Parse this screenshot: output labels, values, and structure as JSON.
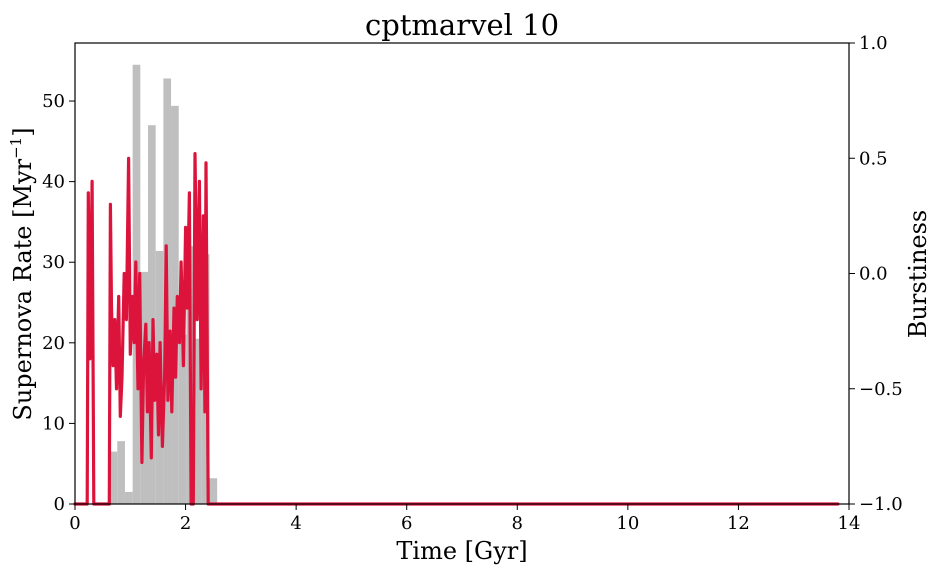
{
  "chart_data": {
    "type": "bar",
    "title": "cptmarvel 10",
    "xlabel": "Time [Gyr]",
    "ylabel": "Supernova Rate [Myr",
    "ylabel_sup": "−1",
    "ylabel_close": "]",
    "y2label": "Burstiness",
    "xlim": [
      0,
      14
    ],
    "ylim": [
      0,
      57.2
    ],
    "y2lim": [
      -1,
      1
    ],
    "xticks": [
      0,
      2,
      4,
      6,
      8,
      10,
      12,
      14
    ],
    "yticks": [
      0,
      10,
      20,
      30,
      40,
      50
    ],
    "y2ticks": [
      -1.0,
      -0.5,
      0.0,
      0.5,
      1.0
    ],
    "y2tick_labels": [
      "−1.0",
      "−0.5",
      "0.0",
      "0.5",
      "1.0"
    ],
    "grid": false,
    "colors": {
      "bars": "#bfbfbf",
      "line": "#dc143c"
    },
    "series": [
      {
        "type": "bar",
        "axis": "left",
        "bin_width": 0.139,
        "x": [
          0.695,
          0.834,
          0.973,
          1.112,
          1.251,
          1.39,
          1.529,
          1.668,
          1.807,
          1.946,
          2.085,
          2.224,
          2.363,
          2.502,
          2.641
        ],
        "values": [
          6.5,
          7.8,
          1.5,
          54.5,
          28.8,
          47.0,
          31.4,
          52.8,
          49.4,
          21.0,
          32.0,
          20.5,
          31.0,
          3.2,
          0.0
        ]
      },
      {
        "type": "line",
        "axis": "right",
        "x": [
          0.0,
          0.22,
          0.24,
          0.27,
          0.31,
          0.34,
          0.37,
          0.4,
          0.62,
          0.64,
          0.66,
          0.69,
          0.72,
          0.75,
          0.79,
          0.82,
          0.85,
          0.89,
          0.93,
          0.97,
          1.0,
          1.04,
          1.07,
          1.1,
          1.14,
          1.17,
          1.21,
          1.24,
          1.28,
          1.31,
          1.34,
          1.38,
          1.41,
          1.44,
          1.48,
          1.51,
          1.54,
          1.58,
          1.62,
          1.65,
          1.68,
          1.72,
          1.75,
          1.79,
          1.82,
          1.85,
          1.89,
          1.92,
          1.96,
          2.0,
          2.03,
          2.07,
          2.1,
          2.14,
          2.17,
          2.21,
          2.25,
          2.28,
          2.32,
          2.35,
          2.37,
          2.41,
          2.44,
          2.48,
          2.51,
          2.54,
          2.58,
          2.62,
          2.65,
          2.68,
          13.8
        ],
        "values": [
          -1.0,
          -1.0,
          0.35,
          -0.37,
          0.4,
          -1.0,
          -1.0,
          -1.0,
          -1.0,
          0.3,
          -0.15,
          -0.4,
          -0.2,
          -0.5,
          -0.1,
          -0.62,
          -0.45,
          0.0,
          -0.2,
          0.5,
          -0.35,
          -0.1,
          -0.3,
          0.05,
          -0.5,
          0.0,
          -0.82,
          -0.4,
          -0.22,
          -0.6,
          -0.3,
          -0.8,
          -0.2,
          -0.55,
          -0.35,
          -0.7,
          -0.3,
          -0.75,
          -0.45,
          0.12,
          -0.55,
          -0.25,
          -0.6,
          -0.15,
          -0.45,
          -0.1,
          -0.3,
          0.05,
          -0.4,
          0.2,
          -0.15,
          0.35,
          -1.0,
          -1.0,
          0.52,
          -0.2,
          0.4,
          -0.5,
          0.25,
          -0.6,
          0.48,
          -1.0,
          -1.0,
          -1.0,
          -1.0,
          -1.0,
          -1.0,
          -1.0,
          -1.0,
          -1.0,
          -1.0
        ]
      }
    ]
  }
}
